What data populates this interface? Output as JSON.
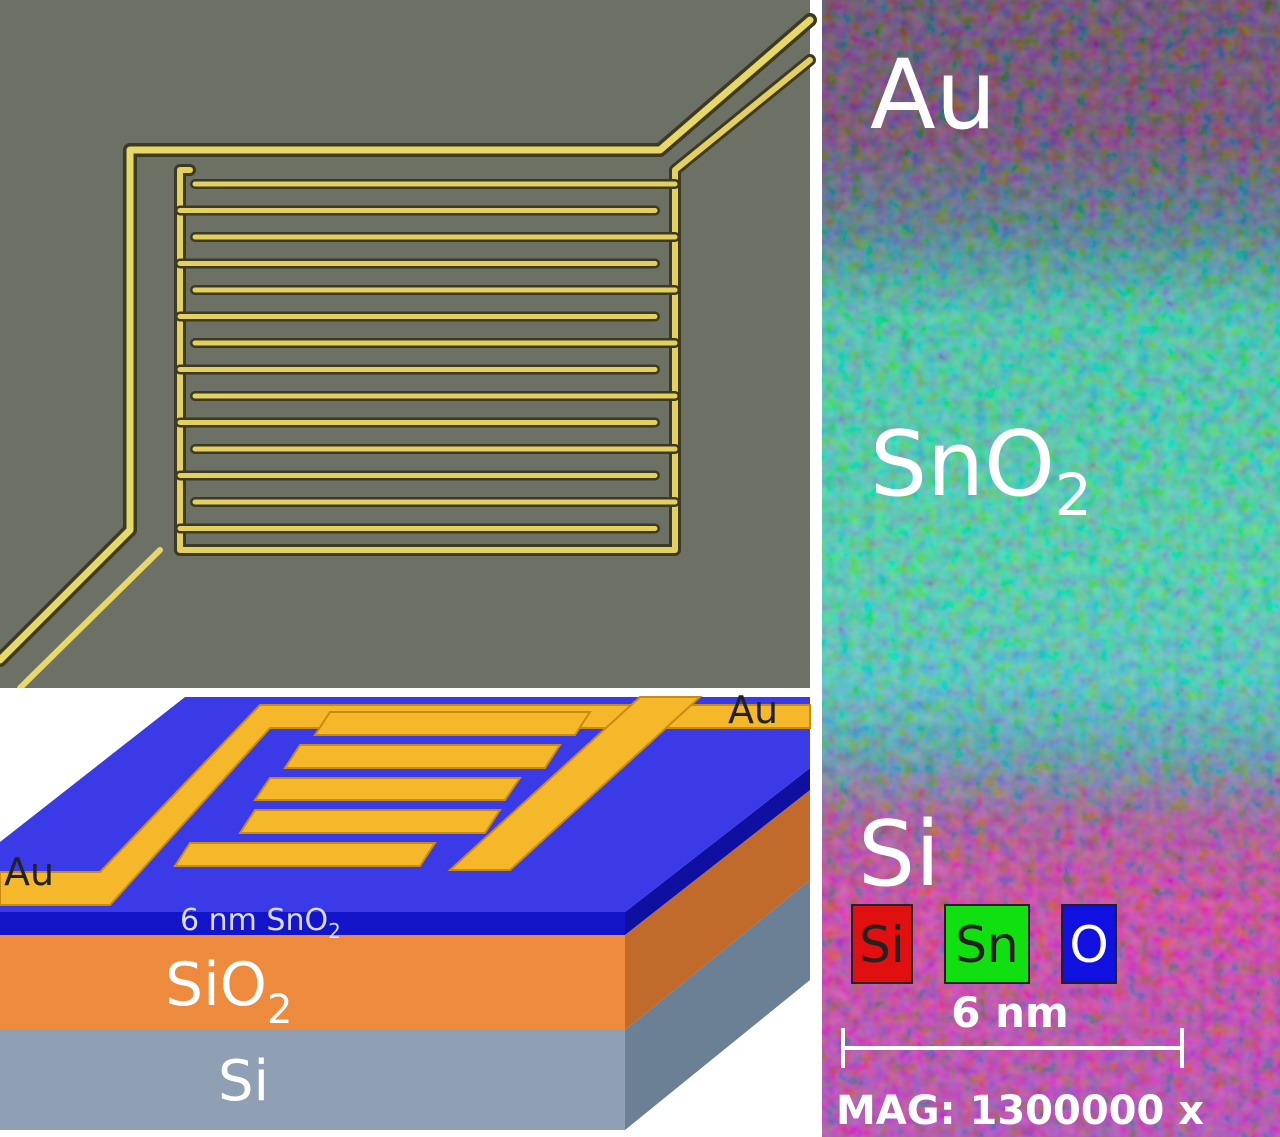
{
  "eds_map": {
    "labels": {
      "au": "Au",
      "sno2": {
        "text": "SnO",
        "sub": "2"
      },
      "si": "Si"
    },
    "legend": [
      "Si",
      "Sn",
      "O"
    ],
    "scale_bar": "6 nm",
    "magnification": "MAG: 1300000 x"
  },
  "schematic": {
    "electrode_labels": [
      "Au",
      "Au"
    ],
    "film": {
      "text": "6 nm SnO",
      "sub": "2"
    },
    "oxide": {
      "text": "SiO",
      "sub": "2"
    },
    "substrate": "Si"
  }
}
